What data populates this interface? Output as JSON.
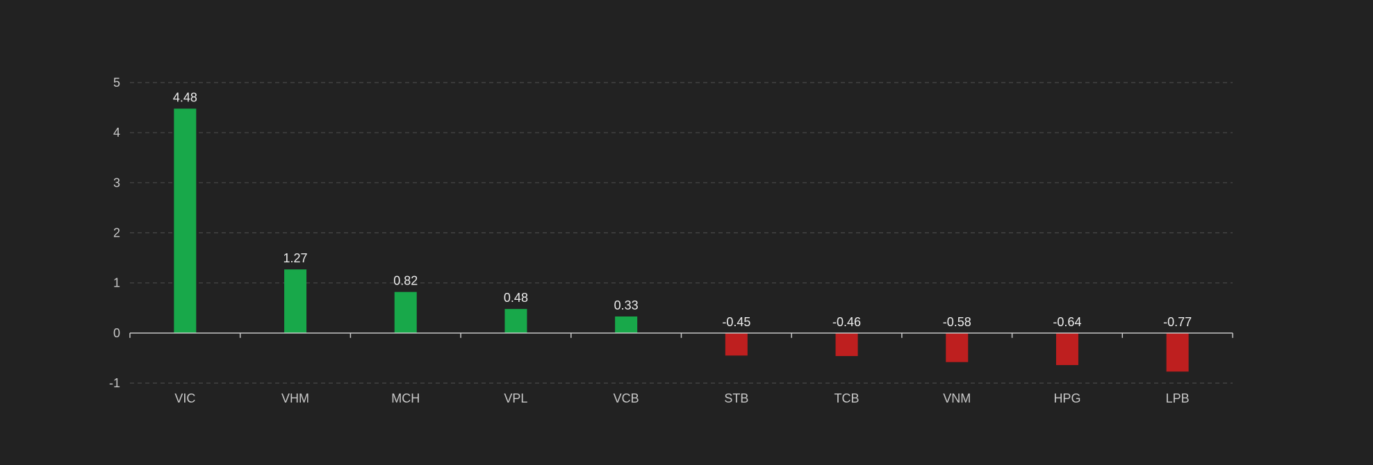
{
  "chart_data": {
    "type": "bar",
    "categories": [
      "VIC",
      "VHM",
      "MCH",
      "VPL",
      "VCB",
      "STB",
      "TCB",
      "VNM",
      "HPG",
      "LPB"
    ],
    "values": [
      4.48,
      1.27,
      0.82,
      0.48,
      0.33,
      -0.45,
      -0.46,
      -0.58,
      -0.64,
      -0.77
    ],
    "data_labels": [
      "4.48",
      "1.27",
      "0.82",
      "0.48",
      "0.33",
      "-0.45",
      "-0.46",
      "-0.58",
      "-0.64",
      "-0.77"
    ],
    "y_ticks": [
      5,
      4,
      3,
      2,
      1,
      0,
      -1
    ],
    "ylim": [
      -1,
      5
    ],
    "grid": true,
    "legend": "none"
  },
  "colors": {
    "background": "#222222",
    "positive": "#18a84a",
    "negative": "#be1f1f",
    "grid": "#4a4a4a",
    "axis": "#c8c8c8",
    "tick_text": "#c9c9c9",
    "label_text": "#ededed"
  }
}
